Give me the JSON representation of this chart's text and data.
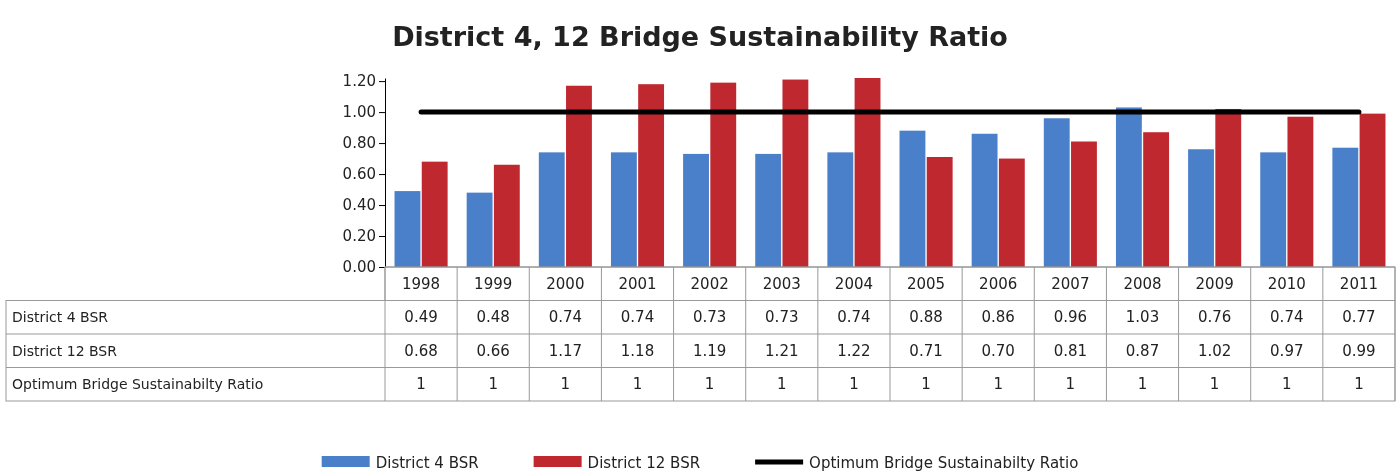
{
  "chart_data": {
    "type": "bar",
    "title": "District 4, 12 Bridge Sustainability Ratio",
    "categories": [
      "1998",
      "1999",
      "2000",
      "2001",
      "2002",
      "2003",
      "2004",
      "2005",
      "2006",
      "2007",
      "2008",
      "2009",
      "2010",
      "2011"
    ],
    "series": [
      {
        "name": "District 4 BSR",
        "color": "#4a7fc9",
        "values": [
          0.49,
          0.48,
          0.74,
          0.74,
          0.73,
          0.73,
          0.74,
          0.88,
          0.86,
          0.96,
          1.03,
          0.76,
          0.74,
          0.77
        ],
        "value_labels": [
          "0.49",
          "0.48",
          "0.74",
          "0.74",
          "0.73",
          "0.73",
          "0.74",
          "0.88",
          "0.86",
          "0.96",
          "1.03",
          "0.76",
          "0.74",
          "0.77"
        ]
      },
      {
        "name": "District 12 BSR",
        "color": "#c0282f",
        "values": [
          0.68,
          0.66,
          1.17,
          1.18,
          1.19,
          1.21,
          1.22,
          0.71,
          0.7,
          0.81,
          0.87,
          1.02,
          0.97,
          0.99
        ],
        "value_labels": [
          "0.68",
          "0.66",
          "1.17",
          "1.18",
          "1.19",
          "1.21",
          "1.22",
          "0.71",
          "0.70",
          "0.81",
          "0.87",
          "1.02",
          "0.97",
          "0.99"
        ]
      },
      {
        "name": "Optimum Bridge Sustainabilty Ratio",
        "type": "line",
        "color": "#000000",
        "values": [
          1,
          1,
          1,
          1,
          1,
          1,
          1,
          1,
          1,
          1,
          1,
          1,
          1,
          1
        ],
        "value_labels": [
          "1",
          "1",
          "1",
          "1",
          "1",
          "1",
          "1",
          "1",
          "1",
          "1",
          "1",
          "1",
          "1",
          "1"
        ]
      }
    ],
    "ylim": [
      0,
      1.22
    ],
    "yticks": [
      {
        "value": 0,
        "label": "0.00"
      },
      {
        "value": 0.2,
        "label": "0.20"
      },
      {
        "value": 0.4,
        "label": "0.40"
      },
      {
        "value": 0.6,
        "label": "0.60"
      },
      {
        "value": 0.8,
        "label": "0.80"
      },
      {
        "value": 1,
        "label": "1.00"
      },
      {
        "value": 1.2,
        "label": "1.20"
      }
    ],
    "legend": "bottom",
    "marker": "none"
  }
}
